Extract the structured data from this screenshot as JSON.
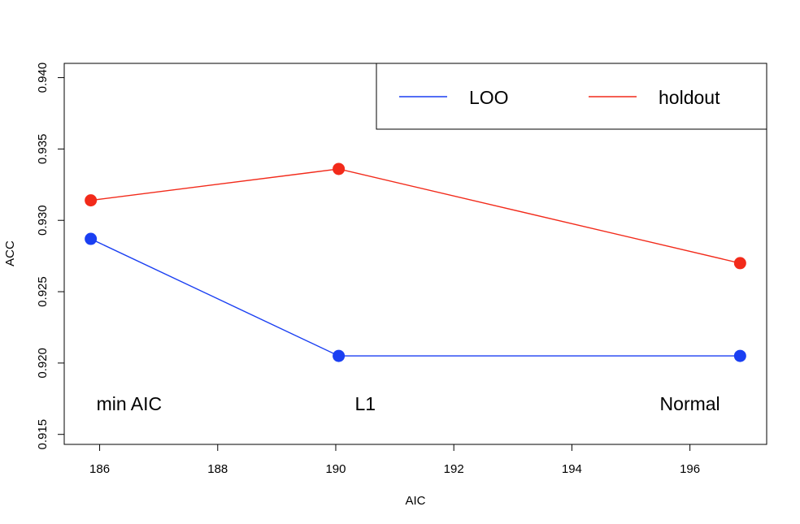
{
  "chart_data": {
    "type": "line",
    "xlabel": "AIC",
    "ylabel": "ACC",
    "xlim": [
      185.4,
      197.3
    ],
    "ylim": [
      0.9143,
      0.941
    ],
    "xticks": [
      "186",
      "188",
      "190",
      "192",
      "194",
      "196"
    ],
    "yticks": [
      "0.915",
      "0.920",
      "0.925",
      "0.930",
      "0.935",
      "0.940"
    ],
    "series": [
      {
        "name": "LOO",
        "color": "#1a3ff2",
        "x": [
          185.85,
          190.05,
          196.85
        ],
        "y": [
          0.9287,
          0.9205,
          0.9205
        ]
      },
      {
        "name": "holdout",
        "color": "#f22a1a",
        "x": [
          185.85,
          190.05,
          196.85
        ],
        "y": [
          0.9314,
          0.9336,
          0.927
        ]
      }
    ],
    "annotations": [
      {
        "text": "min AIC",
        "x": 186.5,
        "y": 0.9167
      },
      {
        "text": "L1",
        "x": 190.5,
        "y": 0.9167
      },
      {
        "text": "Normal",
        "x": 196.0,
        "y": 0.9167
      }
    ],
    "legend_position": "top-right",
    "grid": false
  }
}
